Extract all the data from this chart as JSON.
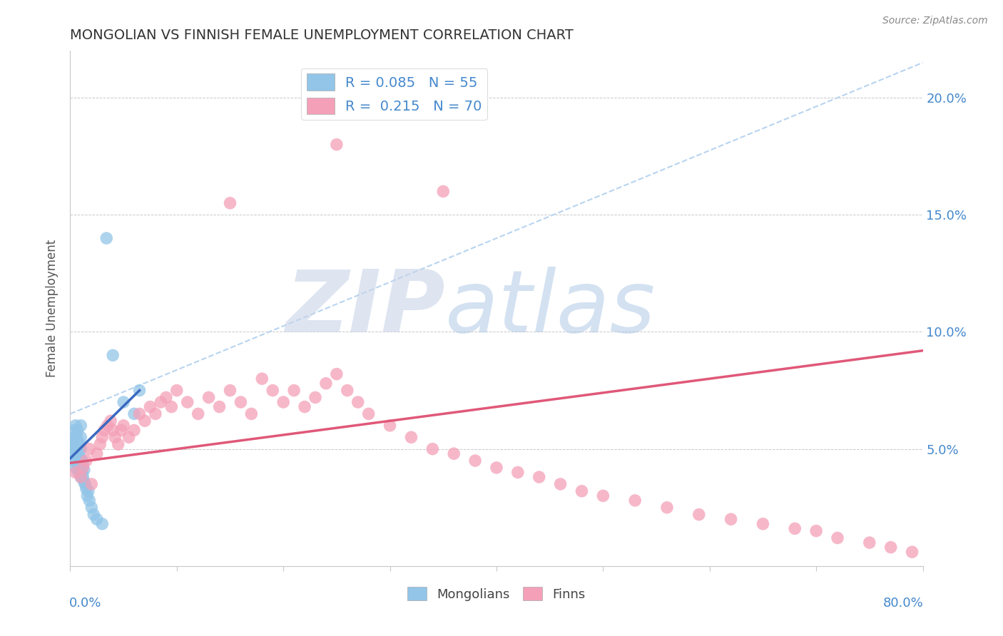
{
  "title": "MONGOLIAN VS FINNISH FEMALE UNEMPLOYMENT CORRELATION CHART",
  "source": "Source: ZipAtlas.com",
  "ylabel": "Female Unemployment",
  "R_mongolian": 0.085,
  "N_mongolian": 55,
  "R_finn": 0.215,
  "N_finn": 70,
  "mongolian_color": "#92C5E8",
  "finn_color": "#F4A0B8",
  "mongolian_line_color": "#3A69C0",
  "finn_line_color": "#E05878",
  "dashed_line_color": "#B8D4F0",
  "background_color": "#FFFFFF",
  "watermark_zip_color": "#C8D8EC",
  "watermark_atlas_color": "#A8C8E8",
  "xlim": [
    0.0,
    0.8
  ],
  "ylim": [
    0.0,
    0.22
  ],
  "xtick_positions": [
    0.0,
    0.1,
    0.2,
    0.3,
    0.4,
    0.5,
    0.6,
    0.7,
    0.8
  ],
  "ytick_positions": [
    0.0,
    0.05,
    0.1,
    0.15,
    0.2
  ],
  "ytick_labels": [
    "",
    "5.0%",
    "10.0%",
    "15.0%",
    "20.0%"
  ],
  "mong_line_x": [
    0.0,
    0.065
  ],
  "mong_line_y": [
    0.046,
    0.075
  ],
  "finn_line_x": [
    0.0,
    0.8
  ],
  "finn_line_y": [
    0.044,
    0.092
  ],
  "dashed_line_x": [
    0.0,
    0.8
  ],
  "dashed_line_y": [
    0.065,
    0.215
  ],
  "mongolian_scatter_x": [
    0.002,
    0.003,
    0.003,
    0.004,
    0.004,
    0.004,
    0.005,
    0.005,
    0.005,
    0.005,
    0.005,
    0.005,
    0.006,
    0.006,
    0.006,
    0.006,
    0.006,
    0.007,
    0.007,
    0.007,
    0.007,
    0.007,
    0.008,
    0.008,
    0.008,
    0.008,
    0.009,
    0.009,
    0.009,
    0.01,
    0.01,
    0.01,
    0.01,
    0.01,
    0.01,
    0.011,
    0.011,
    0.012,
    0.012,
    0.013,
    0.013,
    0.014,
    0.015,
    0.016,
    0.017,
    0.018,
    0.02,
    0.022,
    0.025,
    0.03,
    0.034,
    0.04,
    0.05,
    0.06,
    0.065
  ],
  "mongolian_scatter_y": [
    0.046,
    0.048,
    0.052,
    0.05,
    0.054,
    0.058,
    0.042,
    0.045,
    0.048,
    0.051,
    0.055,
    0.06,
    0.044,
    0.047,
    0.05,
    0.053,
    0.056,
    0.043,
    0.046,
    0.049,
    0.052,
    0.058,
    0.04,
    0.044,
    0.047,
    0.053,
    0.041,
    0.045,
    0.05,
    0.038,
    0.042,
    0.046,
    0.05,
    0.055,
    0.06,
    0.04,
    0.045,
    0.038,
    0.043,
    0.036,
    0.041,
    0.035,
    0.033,
    0.03,
    0.032,
    0.028,
    0.025,
    0.022,
    0.02,
    0.018,
    0.14,
    0.09,
    0.07,
    0.065,
    0.075
  ],
  "finn_scatter_x": [
    0.005,
    0.01,
    0.012,
    0.015,
    0.018,
    0.02,
    0.025,
    0.028,
    0.03,
    0.032,
    0.035,
    0.038,
    0.04,
    0.042,
    0.045,
    0.048,
    0.05,
    0.055,
    0.06,
    0.065,
    0.07,
    0.075,
    0.08,
    0.085,
    0.09,
    0.095,
    0.1,
    0.11,
    0.12,
    0.13,
    0.14,
    0.15,
    0.16,
    0.17,
    0.18,
    0.19,
    0.2,
    0.21,
    0.22,
    0.23,
    0.24,
    0.25,
    0.26,
    0.27,
    0.28,
    0.3,
    0.32,
    0.34,
    0.36,
    0.38,
    0.4,
    0.42,
    0.44,
    0.46,
    0.48,
    0.5,
    0.53,
    0.56,
    0.59,
    0.62,
    0.65,
    0.68,
    0.7,
    0.72,
    0.75,
    0.77,
    0.79,
    0.35,
    0.25,
    0.15
  ],
  "finn_scatter_y": [
    0.04,
    0.038,
    0.042,
    0.045,
    0.05,
    0.035,
    0.048,
    0.052,
    0.055,
    0.058,
    0.06,
    0.062,
    0.058,
    0.055,
    0.052,
    0.058,
    0.06,
    0.055,
    0.058,
    0.065,
    0.062,
    0.068,
    0.065,
    0.07,
    0.072,
    0.068,
    0.075,
    0.07,
    0.065,
    0.072,
    0.068,
    0.075,
    0.07,
    0.065,
    0.08,
    0.075,
    0.07,
    0.075,
    0.068,
    0.072,
    0.078,
    0.082,
    0.075,
    0.07,
    0.065,
    0.06,
    0.055,
    0.05,
    0.048,
    0.045,
    0.042,
    0.04,
    0.038,
    0.035,
    0.032,
    0.03,
    0.028,
    0.025,
    0.022,
    0.02,
    0.018,
    0.016,
    0.015,
    0.012,
    0.01,
    0.008,
    0.006,
    0.16,
    0.18,
    0.155
  ]
}
